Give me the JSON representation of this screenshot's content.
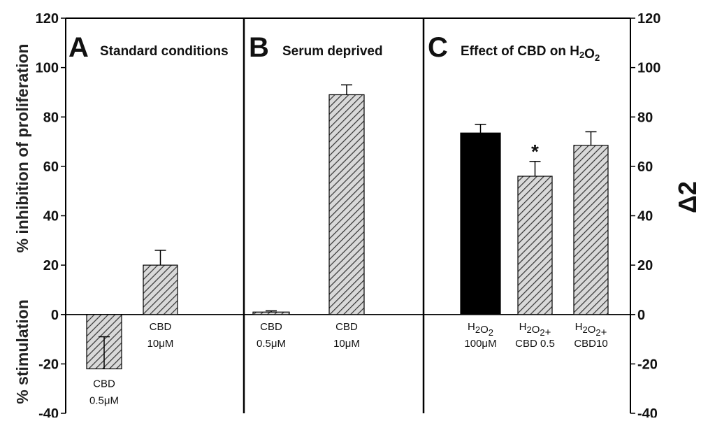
{
  "chart_data": {
    "type": "bar",
    "y_axis": {
      "ylim": [
        -40,
        120
      ],
      "ticks": [
        -40,
        -20,
        0,
        20,
        40,
        60,
        80,
        100,
        120
      ],
      "left_label_top": "% inhibition of proliferation",
      "left_label_bottom": "% stimulation",
      "right_label": "Δ2"
    },
    "panels": [
      {
        "letter": "A",
        "title": "Standard  conditions",
        "bars": [
          {
            "label": [
              "CBD",
              "0.5μM"
            ],
            "value": -22,
            "error": 13,
            "fill": "hatch",
            "marker": ""
          },
          {
            "label": [
              "CBD",
              "10μM"
            ],
            "value": 20,
            "error": 6,
            "fill": "hatch",
            "marker": ""
          }
        ]
      },
      {
        "letter": "B",
        "title": "Serum deprived",
        "bars": [
          {
            "label": [
              "CBD",
              "0.5μM"
            ],
            "value": 1,
            "error": 0.5,
            "fill": "hatch",
            "marker": ""
          },
          {
            "label": [
              "CBD",
              "10μM"
            ],
            "value": 89,
            "error": 4,
            "fill": "hatch",
            "marker": ""
          }
        ]
      },
      {
        "letter": "C",
        "title_parts": [
          "Effect of CBD on H",
          "2",
          "O",
          "2"
        ],
        "bars": [
          {
            "label_parts": [
              [
                "H",
                "2",
                "O",
                "2"
              ],
              [
                "100μM"
              ]
            ],
            "value": 73.5,
            "error": 3.5,
            "fill": "solid",
            "marker": ""
          },
          {
            "label_parts": [
              [
                "H",
                "2",
                "O",
                "2",
                "+"
              ],
              [
                "CBD 0.5"
              ]
            ],
            "value": 56,
            "error": 6,
            "fill": "hatch",
            "marker": "*"
          },
          {
            "label_parts": [
              [
                "H",
                "2",
                "O",
                "2",
                "+"
              ],
              [
                "CBD10"
              ]
            ],
            "value": 68.5,
            "error": 5.5,
            "fill": "hatch",
            "marker": ""
          }
        ]
      }
    ]
  },
  "colors": {
    "bar_hatch_bg": "#d9d9d9",
    "bar_hatch_line": "#333333",
    "bar_solid": "#000000",
    "axis": "#000000"
  }
}
